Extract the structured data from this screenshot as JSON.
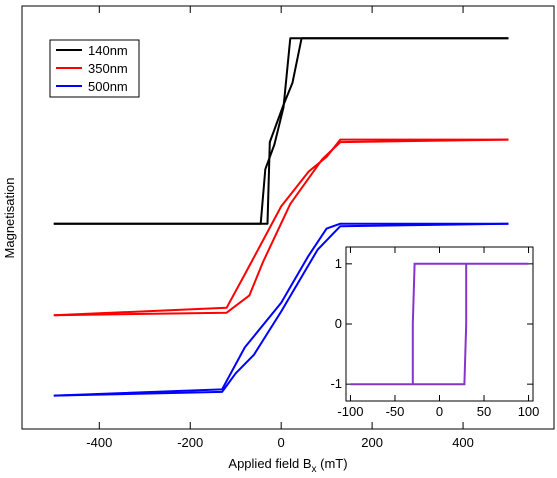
{
  "chart_data": [
    {
      "type": "line",
      "title": "",
      "xlabel_main": "Applied field B",
      "xlabel_sub": "x",
      "xlabel_unit": " (mT)",
      "ylabel": "Magnetisation",
      "xlim": [
        -570,
        600
      ],
      "ylim": [
        -1.7,
        1.72
      ],
      "grid": false,
      "legend": "top-left",
      "x_ticks": [
        -400,
        -200,
        0,
        200,
        400
      ],
      "x_tick_labels": [
        "-400",
        "-200",
        "0",
        "200",
        "400"
      ],
      "series": [
        {
          "name": "140nm",
          "color": "#000000",
          "branch_down": {
            "x": [
              500,
              45,
              25,
              5,
              -25,
              -30,
              -500
            ],
            "y": [
              1.46,
              1.46,
              1.1,
              0.92,
              0.62,
              -0.04,
              -0.04
            ]
          },
          "branch_up": {
            "x": [
              -500,
              -45,
              -35,
              -15,
              5,
              20,
              500
            ],
            "y": [
              -0.04,
              -0.04,
              0.4,
              0.6,
              0.9,
              1.46,
              1.46
            ]
          }
        },
        {
          "name": "350nm",
          "color": "#ff0000",
          "branch_down": {
            "x": [
              500,
              130,
              100,
              60,
              0,
              -80,
              -120,
              -500
            ],
            "y": [
              0.64,
              0.64,
              0.5,
              0.38,
              0.1,
              -0.45,
              -0.72,
              -0.78
            ]
          },
          "branch_up": {
            "x": [
              -500,
              -120,
              -70,
              -40,
              20,
              90,
              130,
              500
            ],
            "y": [
              -0.78,
              -0.76,
              -0.62,
              -0.35,
              0.12,
              0.48,
              0.62,
              0.64
            ]
          }
        },
        {
          "name": "500nm",
          "color": "#0000ff",
          "branch_down": {
            "x": [
              500,
              130,
              100,
              60,
              0,
              -80,
              -130,
              -500
            ],
            "y": [
              -0.04,
              -0.04,
              -0.08,
              -0.3,
              -0.68,
              -1.04,
              -1.38,
              -1.43
            ]
          },
          "branch_up": {
            "x": [
              -500,
              -130,
              -100,
              -60,
              0,
              80,
              130,
              500
            ],
            "y": [
              -1.43,
              -1.4,
              -1.25,
              -1.1,
              -0.75,
              -0.25,
              -0.06,
              -0.04
            ]
          }
        }
      ]
    },
    {
      "type": "line",
      "title": "",
      "xlim": [
        -105,
        105
      ],
      "ylim": [
        -1.28,
        1.28
      ],
      "x_ticks": [
        -100,
        -50,
        0,
        50,
        100
      ],
      "x_tick_labels": [
        "-100",
        "-50",
        "0",
        "50",
        "100"
      ],
      "y_ticks": [
        1,
        0,
        -1
      ],
      "y_tick_labels": [
        "1",
        "0",
        "-1"
      ],
      "series": [
        {
          "color": "#8833cc",
          "x": [
            -100,
            -30,
            -30,
            -28,
            100,
            30,
            30,
            28,
            -100
          ],
          "y": [
            -1,
            -1,
            0,
            1,
            1,
            1,
            0,
            -1,
            -1
          ]
        }
      ]
    }
  ]
}
